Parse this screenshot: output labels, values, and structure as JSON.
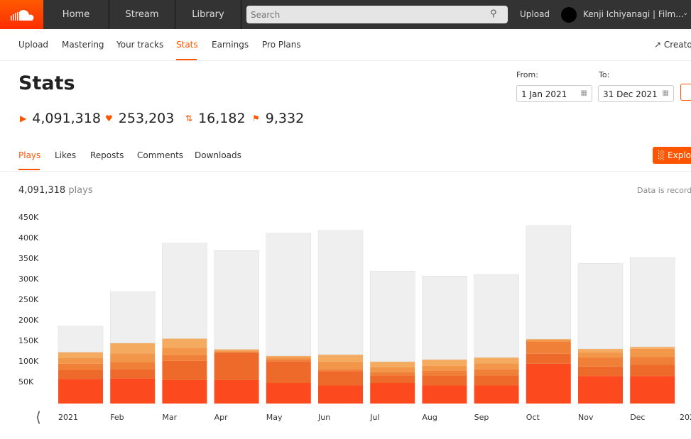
{
  "header": {
    "nav": [
      "Home",
      "Stream",
      "Library"
    ],
    "search_placeholder": "Search",
    "upload": "Upload",
    "user": "Kenji Ichiyanagi | Film..."
  },
  "subnav": {
    "items": [
      "Upload",
      "Mastering",
      "Your tracks",
      "Stats",
      "Earnings",
      "Pro Plans"
    ],
    "active": "Stats",
    "right": "Creato"
  },
  "page": {
    "title": "Stats",
    "stats": [
      {
        "icon": "play-icon",
        "value": "4,091,318"
      },
      {
        "icon": "heart-icon",
        "value": "253,203"
      },
      {
        "icon": "repost-icon",
        "value": "16,182"
      },
      {
        "icon": "comment-icon",
        "value": "9,332"
      }
    ],
    "from_label": "From:",
    "from": "1 Jan 2021",
    "to_label": "To:",
    "to": "31 Dec 2021"
  },
  "tabs": {
    "items": [
      "Plays",
      "Likes",
      "Reposts",
      "Comments",
      "Downloads"
    ],
    "active": "Plays",
    "explore": "Explo"
  },
  "summary": {
    "count": "4,091,318",
    "unit": "plays",
    "note": "Data is recorde"
  },
  "colors": {
    "accent": "#ff5500",
    "layers": [
      "#fc4a1e",
      "#ee6a2b",
      "#f07f38",
      "#f29749",
      "#f4aa5f",
      "#efefef"
    ]
  },
  "chart_data": {
    "type": "bar",
    "stacked": true,
    "categories": [
      "2021",
      "Feb",
      "Mar",
      "Apr",
      "May",
      "Jun",
      "Jul",
      "Aug",
      "Sep",
      "Oct",
      "Nov",
      "Dec"
    ],
    "extra_tick": "202",
    "yticks": [
      "50K",
      "100K",
      "150K",
      "200K",
      "250K",
      "300K",
      "350K",
      "400K",
      "450K"
    ],
    "ylim": [
      0,
      450000
    ],
    "series": [
      {
        "values": [
          60000,
          61000,
          57000,
          57000,
          50000,
          44000,
          50000,
          44000,
          44000,
          97000,
          67000,
          67000
        ]
      },
      {
        "values": [
          22000,
          23000,
          47000,
          66000,
          53000,
          35000,
          18000,
          24000,
          24000,
          24000,
          23000,
          27000
        ]
      },
      {
        "values": [
          15000,
          17000,
          14000,
          3000,
          5000,
          5000,
          8000,
          12000,
          15000,
          30000,
          22000,
          19000
        ]
      },
      {
        "values": [
          14000,
          21000,
          18000,
          3000,
          4000,
          18000,
          12000,
          12000,
          15000,
          4000,
          12000,
          20000
        ]
      },
      {
        "values": [
          14000,
          25000,
          22000,
          3000,
          4000,
          17000,
          14000,
          15000,
          14000,
          2000,
          9000,
          5000
        ]
      },
      {
        "values": [
          63000,
          125000,
          232000,
          240000,
          298000,
          302000,
          220000,
          203000,
          202000,
          276000,
          208000,
          217000
        ]
      }
    ]
  }
}
